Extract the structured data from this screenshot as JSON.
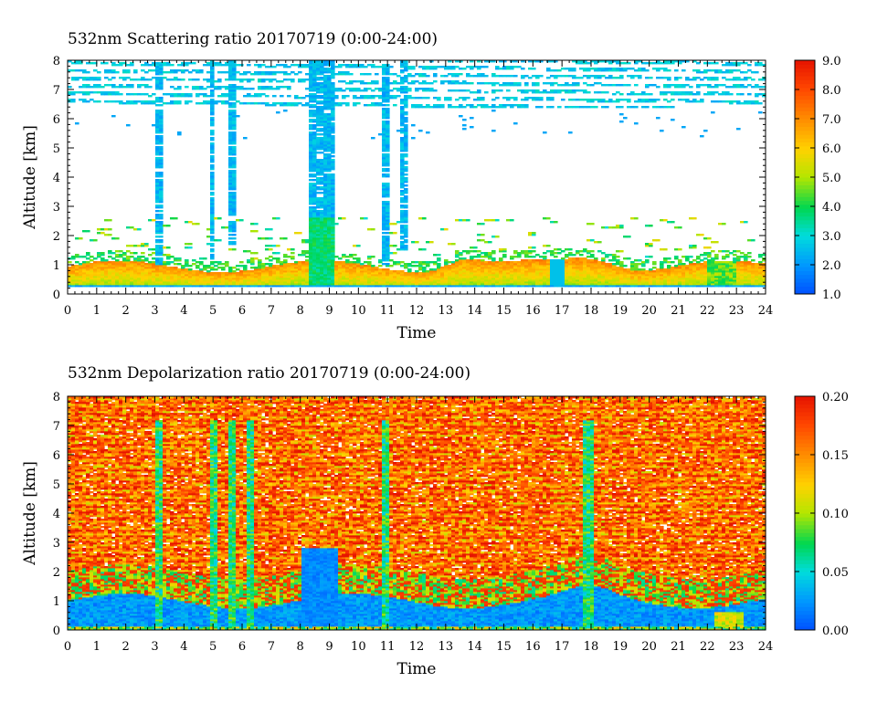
{
  "chart_data": [
    {
      "type": "heatmap",
      "title": "532nm Scattering ratio  20170719 (0:00-24:00)",
      "xlabel": "Time",
      "ylabel": "Altitude [km]",
      "xlim": [
        0,
        24
      ],
      "ylim": [
        0,
        8
      ],
      "x_ticks": [
        "0",
        "1",
        "2",
        "3",
        "4",
        "5",
        "6",
        "7",
        "8",
        "9",
        "10",
        "11",
        "12",
        "13",
        "14",
        "15",
        "16",
        "17",
        "18",
        "19",
        "20",
        "21",
        "22",
        "23",
        "24"
      ],
      "y_ticks": [
        "0",
        "1",
        "2",
        "3",
        "4",
        "5",
        "6",
        "7",
        "8"
      ],
      "colorbar": {
        "range": [
          1.0,
          9.0
        ],
        "ticks": [
          "1.0",
          "2.0",
          "3.0",
          "4.0",
          "5.0",
          "6.0",
          "7.0",
          "8.0",
          "9.0"
        ]
      },
      "features": [
        {
          "kind": "surface_aerosol_layer",
          "time": [
            0,
            24
          ],
          "altitude_km": [
            0.3,
            1.0
          ],
          "level": "high"
        },
        {
          "kind": "cloud_column",
          "time": [
            8.4,
            9.2
          ],
          "altitude_km": [
            0.3,
            8.0
          ],
          "level": "low"
        },
        {
          "kind": "cloud_column",
          "time": [
            3.0,
            3.3
          ],
          "altitude_km": [
            1.0,
            8.0
          ],
          "level": "low"
        },
        {
          "kind": "cloud_column",
          "time": [
            10.8,
            11.0
          ],
          "altitude_km": [
            1.0,
            8.0
          ],
          "level": "low"
        },
        {
          "kind": "upper_layer",
          "time": [
            0,
            24
          ],
          "altitude_km": [
            6.5,
            8.0
          ],
          "level": "low"
        }
      ]
    },
    {
      "type": "heatmap",
      "title": "532nm Depolarization ratio  20170719 (0:00-24:00)",
      "xlabel": "Time",
      "ylabel": "Altitude [km]",
      "xlim": [
        0,
        24
      ],
      "ylim": [
        0,
        8
      ],
      "x_ticks": [
        "0",
        "1",
        "2",
        "3",
        "4",
        "5",
        "6",
        "7",
        "8",
        "9",
        "10",
        "11",
        "12",
        "13",
        "14",
        "15",
        "16",
        "17",
        "18",
        "19",
        "20",
        "21",
        "22",
        "23",
        "24"
      ],
      "y_ticks": [
        "0",
        "1",
        "2",
        "3",
        "4",
        "5",
        "6",
        "7",
        "8"
      ],
      "colorbar": {
        "range": [
          0.0,
          0.2
        ],
        "ticks": [
          "0.00",
          "0.05",
          "0.10",
          "0.15",
          "0.20"
        ]
      },
      "features": [
        {
          "kind": "low_depolarization_boundary_layer",
          "time": [
            0,
            24
          ],
          "altitude_km": [
            0.0,
            1.0
          ]
        },
        {
          "kind": "low_depolarization_cloud",
          "time": [
            8.0,
            9.3
          ],
          "altitude_km": [
            0.0,
            2.8
          ]
        },
        {
          "kind": "noisy_high_depolarization",
          "time": [
            0,
            24
          ],
          "altitude_km": [
            2.0,
            8.0
          ]
        }
      ]
    }
  ]
}
